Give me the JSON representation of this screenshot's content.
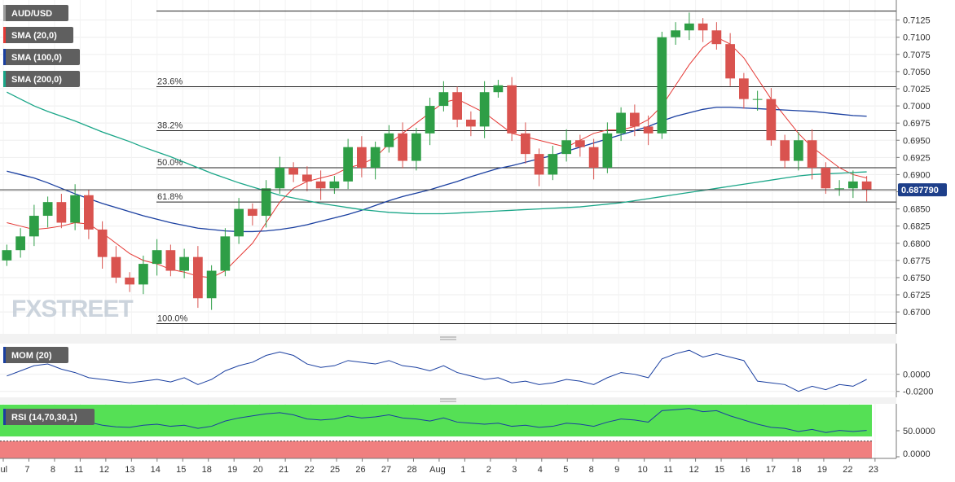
{
  "chart_data": [
    {
      "type": "line",
      "panel": "price",
      "legend": [
        {
          "label": "AUD/USD",
          "color": "#9e9e9e"
        },
        {
          "label": "SMA (20,0)",
          "color": "#e53935"
        },
        {
          "label": "SMA (100,0)",
          "color": "#1a3fa0"
        },
        {
          "label": "SMA (200,0)",
          "color": "#1aa688"
        }
      ],
      "series": [
        {
          "name": "AUD/USD",
          "kind": "candlestick",
          "up_color": "#2e9e46",
          "down_color": "#d9534f",
          "values": [
            0.679,
            0.681,
            0.684,
            0.686,
            0.683,
            0.687,
            0.682,
            0.678,
            0.675,
            0.674,
            0.677,
            0.679,
            0.676,
            0.678,
            0.672,
            0.676,
            0.681,
            0.685,
            0.684,
            0.688,
            0.691,
            0.69,
            0.689,
            0.688,
            0.689,
            0.694,
            0.691,
            0.694,
            0.696,
            0.692,
            0.696,
            0.7,
            0.702,
            0.698,
            0.697,
            0.702,
            0.703,
            0.696,
            0.693,
            0.69,
            0.693,
            0.695,
            0.694,
            0.691,
            0.696,
            0.699,
            0.697,
            0.696,
            0.71,
            0.711,
            0.712,
            0.711,
            0.709,
            0.704,
            0.701,
            0.701,
            0.695,
            0.692,
            0.695,
            0.691,
            0.688,
            0.688,
            0.689,
            0.6878
          ]
        },
        {
          "name": "SMA (20,0)",
          "kind": "line",
          "values": [
            0.683,
            0.6825,
            0.682,
            0.6822,
            0.6825,
            0.683,
            0.6828,
            0.6815,
            0.68,
            0.6785,
            0.6775,
            0.677,
            0.6762,
            0.6758,
            0.6752,
            0.675,
            0.676,
            0.678,
            0.68,
            0.683,
            0.686,
            0.688,
            0.689,
            0.6895,
            0.69,
            0.691,
            0.6915,
            0.6925,
            0.6945,
            0.696,
            0.6975,
            0.699,
            0.7005,
            0.701,
            0.7,
            0.699,
            0.6975,
            0.696,
            0.6955,
            0.695,
            0.6945,
            0.694,
            0.695,
            0.696,
            0.6965,
            0.6965,
            0.697,
            0.698,
            0.7,
            0.703,
            0.706,
            0.7085,
            0.71,
            0.709,
            0.707,
            0.704,
            0.701,
            0.6985,
            0.696,
            0.694,
            0.6925,
            0.691,
            0.69,
            0.6895
          ]
        },
        {
          "name": "SMA (100,0)",
          "kind": "line",
          "values": [
            0.6905,
            0.69,
            0.6895,
            0.6888,
            0.688,
            0.6872,
            0.6865,
            0.6858,
            0.6852,
            0.6846,
            0.684,
            0.6835,
            0.683,
            0.6826,
            0.6822,
            0.682,
            0.6818,
            0.6817,
            0.6817,
            0.6818,
            0.682,
            0.6823,
            0.6827,
            0.6832,
            0.6837,
            0.6842,
            0.6848,
            0.6855,
            0.6862,
            0.6868,
            0.6873,
            0.6878,
            0.6884,
            0.689,
            0.6897,
            0.6903,
            0.6909,
            0.6913,
            0.6918,
            0.6923,
            0.6928,
            0.6934,
            0.694,
            0.6946,
            0.6952,
            0.6958,
            0.6964,
            0.697,
            0.6978,
            0.6985,
            0.699,
            0.6995,
            0.6998,
            0.6998,
            0.6997,
            0.6996,
            0.6995,
            0.6994,
            0.6993,
            0.6992,
            0.699,
            0.6988,
            0.6986,
            0.6985
          ]
        },
        {
          "name": "SMA (200,0)",
          "kind": "line",
          "values": [
            0.702,
            0.701,
            0.7,
            0.6992,
            0.6985,
            0.6978,
            0.697,
            0.6962,
            0.6955,
            0.6948,
            0.694,
            0.6933,
            0.6926,
            0.6918,
            0.691,
            0.6902,
            0.6895,
            0.6888,
            0.6882,
            0.6876,
            0.687,
            0.6866,
            0.6862,
            0.6858,
            0.6855,
            0.6852,
            0.6849,
            0.6847,
            0.6845,
            0.6844,
            0.6843,
            0.6843,
            0.6843,
            0.6844,
            0.6845,
            0.6846,
            0.6847,
            0.6848,
            0.6849,
            0.685,
            0.6851,
            0.6852,
            0.6853,
            0.6855,
            0.6857,
            0.6859,
            0.6862,
            0.6865,
            0.6868,
            0.6871,
            0.6874,
            0.6877,
            0.688,
            0.6883,
            0.6886,
            0.6889,
            0.6892,
            0.6895,
            0.6898,
            0.69,
            0.6901,
            0.6902,
            0.6903,
            0.6904
          ]
        }
      ],
      "fibonacci": [
        {
          "label": "",
          "value": 0.7138
        },
        {
          "label": "23.6%",
          "value": 0.7028
        },
        {
          "label": "38.2%",
          "value": 0.6964
        },
        {
          "label": "50.0%",
          "value": 0.691
        },
        {
          "label": "61.8%",
          "value": 0.686
        },
        {
          "label": "100.0%",
          "value": 0.6683
        }
      ],
      "current_price": {
        "label": "0.687790",
        "value": 0.68779
      },
      "y_ticks": [
        "0.7125",
        "0.7100",
        "0.7075",
        "0.7050",
        "0.7025",
        "0.7000",
        "0.6975",
        "0.6950",
        "0.6925",
        "0.6900",
        "0.6875",
        "0.6850",
        "0.6825",
        "0.6800",
        "0.6775",
        "0.6750",
        "0.6725",
        "0.6700"
      ],
      "ylim": [
        0.668,
        0.714
      ],
      "watermark": "FXSTREET"
    },
    {
      "type": "line",
      "panel": "momentum",
      "legend": [
        {
          "label": "MOM (20)",
          "color": "#1a3fa0"
        }
      ],
      "series": [
        {
          "name": "MOM (20)",
          "color": "#1a3fa0",
          "values": [
            -0.002,
            0.004,
            0.01,
            0.012,
            0.006,
            0.002,
            -0.004,
            -0.006,
            -0.008,
            -0.01,
            -0.008,
            -0.006,
            -0.009,
            -0.004,
            -0.012,
            -0.006,
            0.004,
            0.01,
            0.014,
            0.022,
            0.026,
            0.022,
            0.012,
            0.008,
            0.01,
            0.016,
            0.014,
            0.012,
            0.016,
            0.01,
            0.008,
            0.004,
            0.01,
            0.002,
            -0.002,
            -0.006,
            -0.004,
            -0.01,
            -0.008,
            -0.012,
            -0.01,
            -0.006,
            -0.008,
            -0.012,
            -0.004,
            0.002,
            0.0,
            -0.004,
            0.018,
            0.024,
            0.028,
            0.02,
            0.024,
            0.02,
            0.016,
            -0.008,
            -0.01,
            -0.012,
            -0.02,
            -0.014,
            -0.018,
            -0.012,
            -0.014,
            -0.006
          ]
        }
      ],
      "y_ticks": [
        "0.0000",
        "-0.0200"
      ],
      "ylim": [
        -0.025,
        0.032
      ]
    },
    {
      "type": "line",
      "panel": "rsi",
      "legend": [
        {
          "label": "RSI (14,70,30,1)",
          "color": "#1a3fa0"
        }
      ],
      "series": [
        {
          "name": "RSI (14,70,30,1)",
          "color": "#1a3fa0",
          "values": [
            55,
            60,
            66,
            62,
            58,
            60,
            54,
            48,
            45,
            44,
            48,
            50,
            46,
            48,
            42,
            46,
            56,
            62,
            66,
            70,
            72,
            68,
            60,
            58,
            60,
            66,
            62,
            64,
            68,
            62,
            60,
            56,
            62,
            54,
            52,
            50,
            52,
            46,
            48,
            44,
            46,
            52,
            50,
            46,
            54,
            60,
            58,
            54,
            76,
            78,
            80,
            74,
            76,
            66,
            58,
            50,
            44,
            42,
            36,
            40,
            34,
            38,
            36,
            38
          ]
        }
      ],
      "y_ticks": [
        "50.0000",
        "0.0000"
      ],
      "ylim": [
        0,
        100
      ],
      "overbought": 70,
      "oversold": 30
    }
  ],
  "x_ticks": [
    "Jul",
    "7",
    "8",
    "11",
    "12",
    "13",
    "14",
    "15",
    "18",
    "19",
    "20",
    "21",
    "22",
    "25",
    "26",
    "27",
    "28",
    "Aug",
    "1",
    "2",
    "3",
    "4",
    "5",
    "8",
    "9",
    "10",
    "11",
    "12",
    "15",
    "16",
    "17",
    "18",
    "19",
    "22",
    "23"
  ]
}
